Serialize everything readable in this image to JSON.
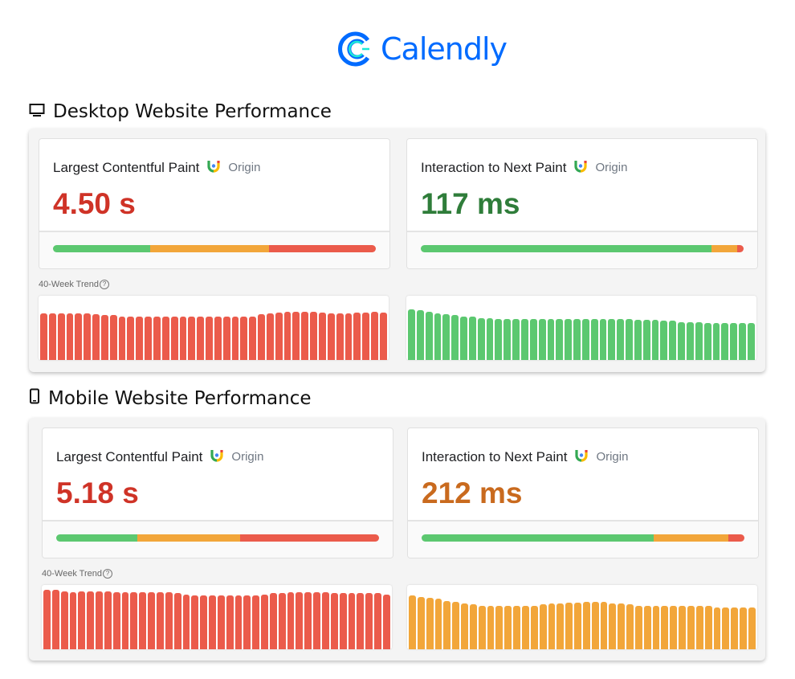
{
  "brand": {
    "name": "Calendly",
    "color": "#006bff"
  },
  "colors": {
    "good": "#5cc870",
    "needs_improvement": "#f2a63a",
    "poor": "#eb5b4b",
    "value_poor": "#cf3327",
    "value_good": "#2f7d3a",
    "value_ni": "#c96a1e"
  },
  "sections": [
    {
      "title": "Desktop Website Performance",
      "icon": "desktop-monitor-icon",
      "trend_label": "40-Week Trend",
      "cards": [
        {
          "metric": "Largest Contentful Paint",
          "scope": "Origin",
          "value": "4.50 s",
          "rating": "poor",
          "distribution": {
            "good": 30,
            "needs_improvement": 37,
            "poor": 33
          },
          "trend": [
            0.72,
            0.72,
            0.72,
            0.72,
            0.72,
            0.72,
            0.71,
            0.7,
            0.7,
            0.68,
            0.68,
            0.68,
            0.68,
            0.68,
            0.68,
            0.68,
            0.67,
            0.67,
            0.67,
            0.67,
            0.67,
            0.67,
            0.67,
            0.67,
            0.68,
            0.71,
            0.72,
            0.74,
            0.75,
            0.75,
            0.75,
            0.75,
            0.74,
            0.72,
            0.72,
            0.72,
            0.74,
            0.74,
            0.75,
            0.74
          ]
        },
        {
          "metric": "Interaction to Next Paint",
          "scope": "Origin",
          "value": "117 ms",
          "rating": "good",
          "distribution": {
            "good": 90,
            "needs_improvement": 8,
            "poor": 2
          },
          "trend": [
            0.79,
            0.77,
            0.75,
            0.72,
            0.71,
            0.7,
            0.68,
            0.67,
            0.65,
            0.65,
            0.64,
            0.64,
            0.64,
            0.64,
            0.64,
            0.64,
            0.64,
            0.64,
            0.64,
            0.64,
            0.64,
            0.64,
            0.64,
            0.64,
            0.64,
            0.64,
            0.62,
            0.62,
            0.62,
            0.61,
            0.61,
            0.59,
            0.59,
            0.59,
            0.58,
            0.57,
            0.57,
            0.57,
            0.57,
            0.57
          ]
        }
      ]
    },
    {
      "title": "Mobile Website Performance",
      "icon": "mobile-phone-icon",
      "trend_label": "40-Week Trend",
      "cards": [
        {
          "metric": "Largest Contentful Paint",
          "scope": "Origin",
          "value": "5.18 s",
          "rating": "poor",
          "distribution": {
            "good": 25,
            "needs_improvement": 32,
            "poor": 43
          },
          "trend": [
            0.92,
            0.92,
            0.9,
            0.89,
            0.9,
            0.9,
            0.9,
            0.9,
            0.89,
            0.89,
            0.89,
            0.89,
            0.89,
            0.89,
            0.89,
            0.87,
            0.85,
            0.84,
            0.84,
            0.84,
            0.84,
            0.84,
            0.84,
            0.84,
            0.84,
            0.85,
            0.87,
            0.87,
            0.89,
            0.89,
            0.89,
            0.89,
            0.89,
            0.87,
            0.87,
            0.87,
            0.87,
            0.87,
            0.87,
            0.85
          ]
        },
        {
          "metric": "Interaction to Next Paint",
          "scope": "Origin",
          "value": "212 ms",
          "rating": "needs_improvement",
          "distribution": {
            "good": 72,
            "needs_improvement": 23,
            "poor": 5
          },
          "trend": [
            0.84,
            0.81,
            0.8,
            0.79,
            0.75,
            0.74,
            0.71,
            0.7,
            0.68,
            0.67,
            0.67,
            0.67,
            0.67,
            0.67,
            0.68,
            0.7,
            0.71,
            0.71,
            0.73,
            0.73,
            0.74,
            0.74,
            0.74,
            0.71,
            0.71,
            0.7,
            0.68,
            0.67,
            0.67,
            0.68,
            0.68,
            0.68,
            0.67,
            0.67,
            0.67,
            0.65,
            0.65,
            0.65,
            0.65,
            0.65
          ]
        }
      ]
    }
  ]
}
